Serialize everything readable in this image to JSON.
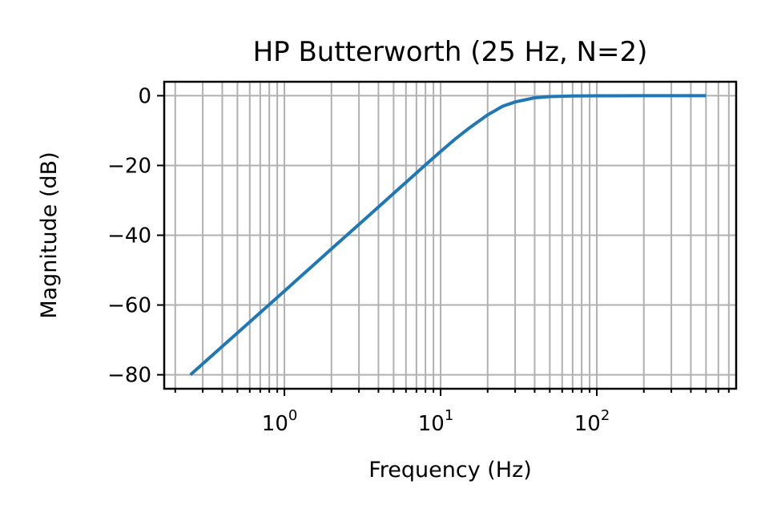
{
  "chart_data": {
    "type": "line",
    "title": "HP Butterworth (25 Hz, N=2)",
    "xlabel": "Frequency (Hz)",
    "ylabel": "Magnitude (dB)",
    "x_scale": "log",
    "xlim": [
      0.17,
      780
    ],
    "ylim": [
      -84,
      4
    ],
    "grid": true,
    "x_major_ticks": [
      {
        "value": 1,
        "base": "10",
        "exp": "0"
      },
      {
        "value": 10,
        "base": "10",
        "exp": "1"
      },
      {
        "value": 100,
        "base": "10",
        "exp": "2"
      }
    ],
    "y_ticks": [
      {
        "value": 0,
        "label": "0"
      },
      {
        "value": -20,
        "label": "−20"
      },
      {
        "value": -40,
        "label": "−40"
      },
      {
        "value": -60,
        "label": "−60"
      },
      {
        "value": -80,
        "label": "−80"
      }
    ],
    "series": [
      {
        "color": "#1f77b4",
        "x": [
          0.25,
          0.5,
          1,
          2,
          3,
          5,
          8,
          10,
          12.5,
          15,
          20,
          25,
          30,
          40,
          50,
          70,
          100,
          200,
          500
        ],
        "y": [
          -80,
          -68,
          -56,
          -43.9,
          -36.9,
          -28,
          -19.8,
          -16,
          -12.3,
          -9.5,
          -5.5,
          -3,
          -1.8,
          -0.6,
          -0.25,
          -0.06,
          -0.02,
          0,
          0
        ]
      }
    ]
  }
}
